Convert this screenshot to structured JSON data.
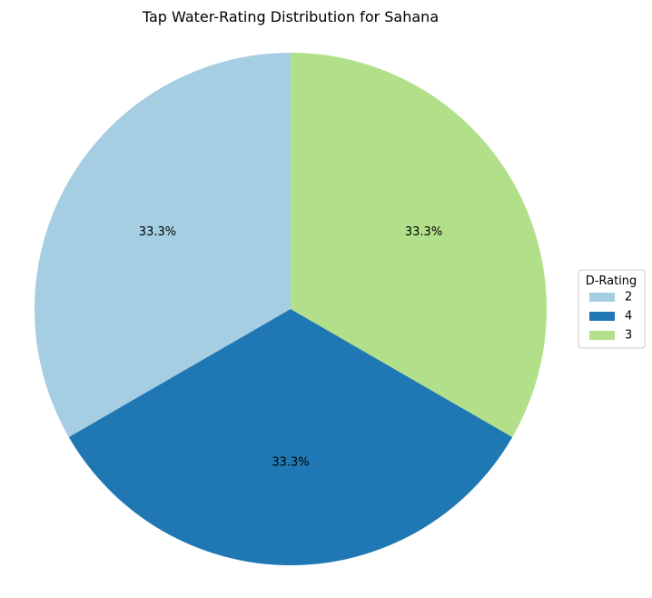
{
  "chart_data": {
    "type": "pie",
    "title": "Tap Water-Rating Distribution for Sahana",
    "slices": [
      {
        "label": "2",
        "value": 33.3,
        "display": "33.3%",
        "color": "#a6cee3"
      },
      {
        "label": "4",
        "value": 33.3,
        "display": "33.3%",
        "color": "#1f78b4"
      },
      {
        "label": "3",
        "value": 33.3,
        "display": "33.3%",
        "color": "#b2df8a"
      }
    ],
    "start_angle_deg": 90,
    "direction": "counterclockwise",
    "legend": {
      "title": "D-Rating",
      "placement": "right"
    }
  }
}
